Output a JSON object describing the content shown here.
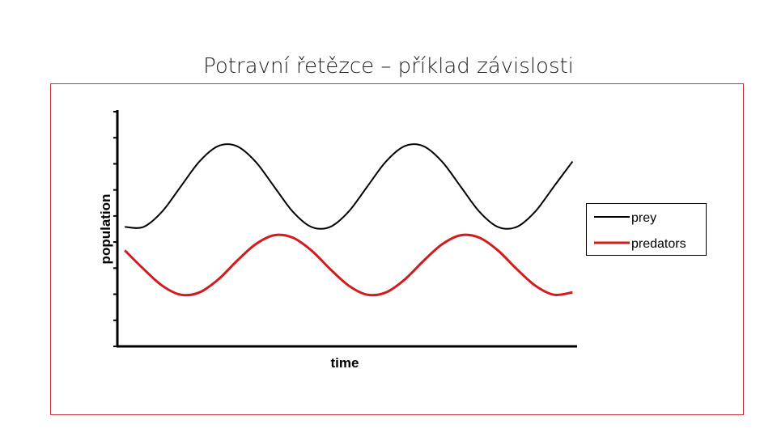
{
  "title": "Potravní řetězce – příklad závislosti",
  "chart_data": {
    "type": "line",
    "x_label": "time",
    "y_label": "population",
    "x": [
      0,
      1,
      2,
      3,
      4,
      5,
      6,
      7,
      8,
      9,
      10,
      11,
      12,
      13,
      14,
      15,
      16,
      17,
      18,
      19,
      20,
      21,
      22,
      23,
      24
    ],
    "xlim": [
      -0.4,
      24.2
    ],
    "ylim": [
      0,
      9
    ],
    "legend_position": "right",
    "series": [
      {
        "name": "prey",
        "color": "#000000",
        "values": [
          4.58,
          4.58,
          5.17,
          6.13,
          7.09,
          7.68,
          7.68,
          7.09,
          6.13,
          5.17,
          4.58,
          4.58,
          5.17,
          6.13,
          7.09,
          7.68,
          7.68,
          7.09,
          6.13,
          5.17,
          4.58,
          4.58,
          5.17,
          6.13,
          7.09
        ]
      },
      {
        "name": "predators",
        "color": "#d01c1c",
        "values": [
          3.68,
          2.97,
          2.33,
          1.98,
          2.07,
          2.56,
          3.27,
          3.91,
          4.26,
          4.17,
          3.68,
          2.97,
          2.33,
          1.98,
          2.07,
          2.56,
          3.27,
          3.91,
          4.26,
          4.17,
          3.68,
          2.97,
          2.33,
          1.98,
          2.07
        ]
      }
    ]
  }
}
